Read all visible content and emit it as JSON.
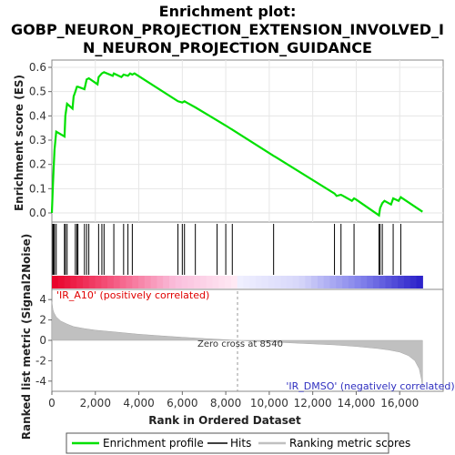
{
  "chart_data": {
    "type": "line",
    "title_lines": [
      "Enrichment plot:",
      "GOBP_NEURON_PROJECTION_EXTENSION_INVOLVED_I",
      "N_NEURON_PROJECTION_GUIDANCE"
    ],
    "es_panel": {
      "ylabel": "Enrichment score (ES)",
      "ylim": [
        0.0,
        0.6
      ],
      "yticks": [
        "0.0",
        "0.1",
        "0.2",
        "0.3",
        "0.4",
        "0.5",
        "0.6"
      ],
      "xlim": [
        0,
        18000
      ],
      "series": [
        {
          "name": "Enrichment profile",
          "color": "#00e000",
          "x": [
            0,
            40,
            80,
            120,
            200,
            580,
            620,
            700,
            950,
            1000,
            1080,
            1150,
            1200,
            1500,
            1550,
            1600,
            1700,
            2100,
            2150,
            2300,
            2400,
            2800,
            2850,
            3200,
            3300,
            3500,
            3600,
            3700,
            3800,
            5800,
            6000,
            6100,
            6200,
            6600,
            8000,
            10200,
            10300,
            13000,
            13100,
            13300,
            13400,
            13800,
            13900,
            14000,
            15050,
            15100,
            15200,
            15300,
            15600,
            15700,
            15950,
            16050,
            17050
          ],
          "y": [
            0.0,
            0.1,
            0.18,
            0.26,
            0.335,
            0.315,
            0.4,
            0.45,
            0.43,
            0.48,
            0.5,
            0.52,
            0.52,
            0.51,
            0.53,
            0.55,
            0.555,
            0.53,
            0.56,
            0.575,
            0.58,
            0.565,
            0.575,
            0.56,
            0.57,
            0.565,
            0.575,
            0.57,
            0.575,
            0.46,
            0.455,
            0.46,
            0.455,
            0.435,
            0.36,
            0.235,
            0.23,
            0.08,
            0.07,
            0.075,
            0.07,
            0.05,
            0.06,
            0.055,
            -0.01,
            0.02,
            0.04,
            0.05,
            0.035,
            0.06,
            0.05,
            0.065,
            0.005
          ]
        }
      ]
    },
    "hits_panel": {
      "legend_name": "Hits",
      "positions": [
        40,
        80,
        120,
        200,
        580,
        620,
        700,
        1080,
        1150,
        1200,
        1500,
        1600,
        1700,
        2150,
        2300,
        2400,
        2850,
        3300,
        3500,
        3700,
        5800,
        6000,
        6100,
        6600,
        7600,
        8000,
        8300,
        10200,
        13000,
        13300,
        13900,
        15050,
        15100,
        15200,
        15700,
        16050
      ]
    },
    "metric_panel": {
      "ylabel": "Ranked list metric (Signal2Noise)",
      "xlabel": "Rank in Ordered Dataset",
      "legend_name": "Ranking metric scores",
      "ylim": [
        -5,
        5
      ],
      "yticks": [
        "4",
        "2",
        "0",
        "-2",
        "-4"
      ],
      "xticks": [
        "0",
        "2,000",
        "4,000",
        "6,000",
        "8,000",
        "10,000",
        "12,000",
        "14,000",
        "16,000"
      ],
      "zero_cross_label": "Zero cross at 8540",
      "zero_cross": 8540,
      "positive_label": "'IR_A10' (positively correlated)",
      "negative_label": "'IR_DMSO' (negatively correlated)",
      "curve_x": [
        0,
        50,
        100,
        200,
        400,
        700,
        1000,
        1500,
        2000,
        3000,
        4000,
        5000,
        6000,
        7000,
        8000,
        8540,
        9000,
        10000,
        11000,
        12000,
        13000,
        14000,
        15000,
        15500,
        16000,
        16400,
        16700,
        16900,
        17000,
        17050
      ],
      "curve_y": [
        3.8,
        3.0,
        2.7,
        2.3,
        1.9,
        1.6,
        1.35,
        1.15,
        1.0,
        0.8,
        0.6,
        0.45,
        0.3,
        0.18,
        0.06,
        0.0,
        -0.05,
        -0.15,
        -0.25,
        -0.35,
        -0.45,
        -0.6,
        -0.8,
        -0.95,
        -1.15,
        -1.5,
        -2.0,
        -2.8,
        -3.8,
        -4.6
      ]
    },
    "legend": [
      "Enrichment profile",
      "Hits",
      "Ranking metric scores"
    ]
  }
}
